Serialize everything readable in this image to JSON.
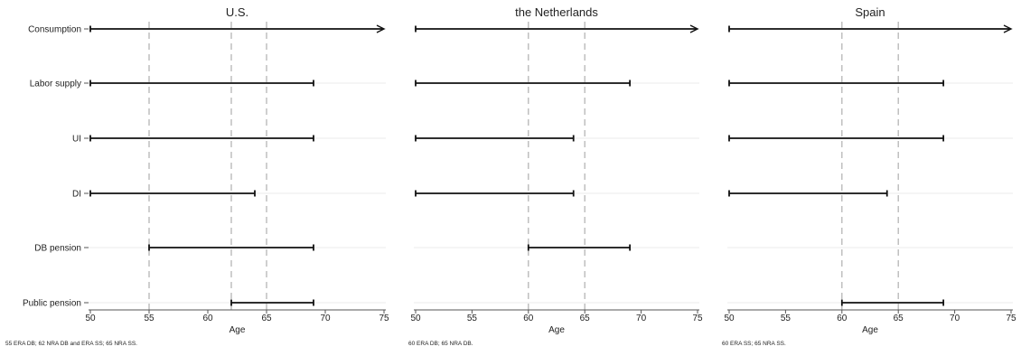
{
  "chart_data": {
    "type": "range-bar",
    "categories": [
      "Consumption",
      "Labor supply",
      "UI",
      "DI",
      "DB pension",
      "Public pension"
    ],
    "xlabel": "Age",
    "xlim": [
      50,
      75
    ],
    "xticks": [
      50,
      55,
      60,
      65,
      70,
      75
    ],
    "grid": true,
    "panels": [
      {
        "title": "U.S.",
        "vlines": [
          55,
          62,
          65
        ],
        "note": "55 ERA DB; 62 NRA DB and ERA SS; 65 NRA SS.",
        "ranges": [
          {
            "category": "Consumption",
            "start": 50,
            "end": 75,
            "arrow": true
          },
          {
            "category": "Labor supply",
            "start": 50,
            "end": 69
          },
          {
            "category": "UI",
            "start": 50,
            "end": 69
          },
          {
            "category": "DI",
            "start": 50,
            "end": 64
          },
          {
            "category": "DB pension",
            "start": 55,
            "end": 69
          },
          {
            "category": "Public pension",
            "start": 62,
            "end": 69
          }
        ]
      },
      {
        "title": "the Netherlands",
        "vlines": [
          60,
          65
        ],
        "note": "60 ERA DB; 65 NRA DB.",
        "ranges": [
          {
            "category": "Consumption",
            "start": 50,
            "end": 75,
            "arrow": true
          },
          {
            "category": "Labor supply",
            "start": 50,
            "end": 69
          },
          {
            "category": "UI",
            "start": 50,
            "end": 64
          },
          {
            "category": "DI",
            "start": 50,
            "end": 64
          },
          {
            "category": "DB pension",
            "start": 60,
            "end": 69
          }
        ]
      },
      {
        "title": "Spain",
        "vlines": [
          60,
          65
        ],
        "note": "60 ERA SS; 65 NRA SS.",
        "ranges": [
          {
            "category": "Consumption",
            "start": 50,
            "end": 75,
            "arrow": true
          },
          {
            "category": "Labor supply",
            "start": 50,
            "end": 69
          },
          {
            "category": "UI",
            "start": 50,
            "end": 69
          },
          {
            "category": "DI",
            "start": 50,
            "end": 64
          },
          {
            "category": "Public pension",
            "start": 60,
            "end": 69
          }
        ]
      }
    ]
  }
}
